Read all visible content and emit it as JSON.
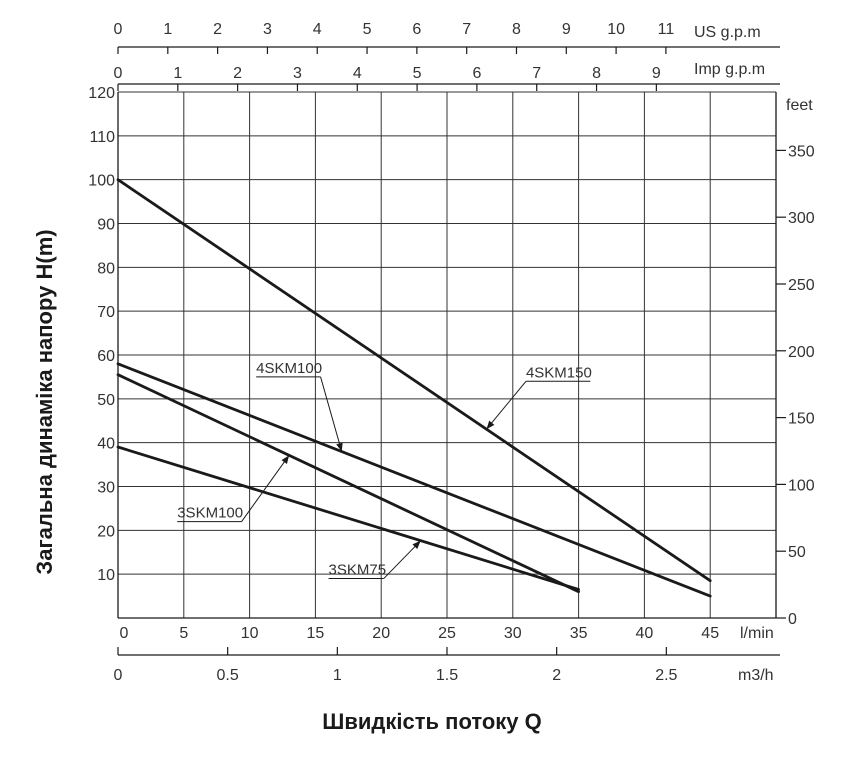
{
  "chart_data": {
    "type": "line",
    "title": "",
    "xlabel": "Швидкість потоку Q",
    "ylabel": "Загальна динаміка напору H(m)",
    "grid": true,
    "legend": "none",
    "colors": {
      "line": "#1a1a1a",
      "grid": "#333333",
      "text": "#333333"
    },
    "x_axis": {
      "unit": "l/min",
      "range": [
        0,
        50
      ],
      "ticks": [
        "0",
        "5",
        "10",
        "15",
        "20",
        "25",
        "30",
        "35",
        "40",
        "45"
      ]
    },
    "y_axis": {
      "unit": "m",
      "range": [
        0,
        120
      ],
      "ticks": [
        "10",
        "20",
        "30",
        "40",
        "50",
        "60",
        "70",
        "80",
        "90",
        "100",
        "110",
        "120"
      ]
    },
    "y2_axis": {
      "unit": "feet",
      "range": [
        0,
        393.7
      ],
      "ticks": [
        "0",
        "50",
        "100",
        "150",
        "200",
        "250",
        "300",
        "350"
      ]
    },
    "top_axis_us": {
      "unit": "US g.p.m",
      "range": [
        0,
        13.21
      ],
      "ticks": [
        "0",
        "1",
        "2",
        "3",
        "4",
        "5",
        "6",
        "7",
        "8",
        "9",
        "10",
        "11"
      ]
    },
    "top_axis_imp": {
      "unit": "Imp g.p.m",
      "range": [
        0,
        11
      ],
      "ticks": [
        "0",
        "1",
        "2",
        "3",
        "4",
        "5",
        "6",
        "7",
        "8",
        "9"
      ]
    },
    "bottom_axis_m3h": {
      "unit": "m3/h",
      "range": [
        0,
        3
      ],
      "ticks": [
        "0",
        "0.5",
        "1",
        "1.5",
        "2",
        "2.5"
      ]
    },
    "series": [
      {
        "name": "4SKM150",
        "x": [
          0,
          45
        ],
        "y": [
          100,
          8.5
        ]
      },
      {
        "name": "4SKM100",
        "x": [
          0,
          45
        ],
        "y": [
          58,
          5
        ]
      },
      {
        "name": "3SKM100",
        "x": [
          0,
          35
        ],
        "y": [
          55.5,
          6
        ]
      },
      {
        "name": "3SKM75",
        "x": [
          0,
          35
        ],
        "y": [
          39,
          6.5
        ]
      }
    ],
    "annotations": [
      {
        "series": "4SKM150",
        "at_x": 28,
        "label_at": [
          31,
          54
        ]
      },
      {
        "series": "4SKM100",
        "at_x": 17,
        "label_at": [
          10.5,
          55
        ]
      },
      {
        "series": "3SKM100",
        "at_x": 13,
        "label_at": [
          4.5,
          22
        ]
      },
      {
        "series": "3SKM75",
        "at_x": 23,
        "label_at": [
          16,
          9
        ]
      }
    ]
  }
}
